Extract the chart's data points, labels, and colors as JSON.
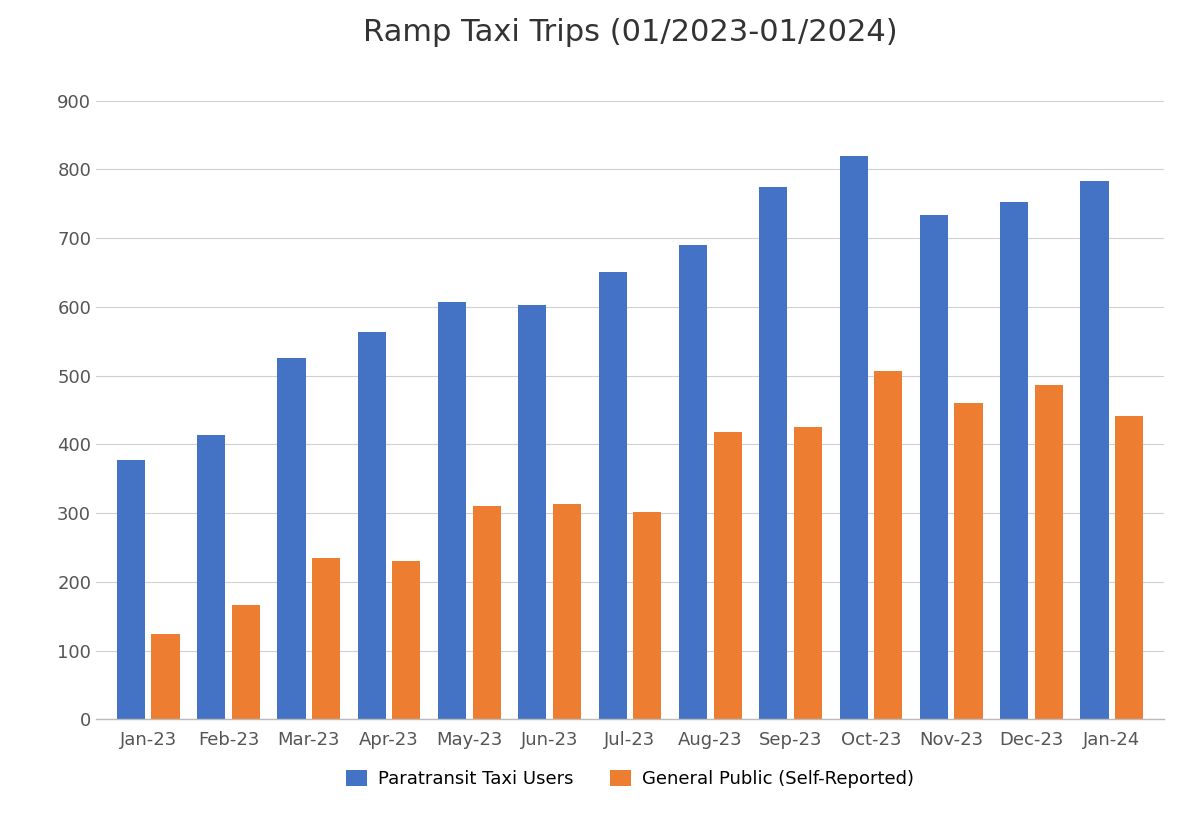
{
  "title": "Ramp Taxi Trips (01/2023-01/2024)",
  "categories": [
    "Jan-23",
    "Feb-23",
    "Mar-23",
    "Apr-23",
    "May-23",
    "Jun-23",
    "Jul-23",
    "Aug-23",
    "Sep-23",
    "Oct-23",
    "Nov-23",
    "Dec-23",
    "Jan-24"
  ],
  "paratransit": [
    378,
    413,
    526,
    563,
    607,
    602,
    651,
    690,
    774,
    820,
    734,
    752,
    783
  ],
  "general_public": [
    125,
    167,
    235,
    231,
    311,
    314,
    301,
    418,
    425,
    507,
    460,
    487,
    441
  ],
  "paratransit_color": "#4472C4",
  "general_public_color": "#ED7D31",
  "paratransit_label": "Paratransit Taxi Users",
  "general_public_label": "General Public (Self-Reported)",
  "ylim": [
    0,
    950
  ],
  "yticks": [
    0,
    100,
    200,
    300,
    400,
    500,
    600,
    700,
    800,
    900
  ],
  "title_fontsize": 22,
  "tick_fontsize": 13,
  "legend_fontsize": 13,
  "background_color": "#ffffff",
  "grid_color": "#d0d0d0",
  "bar_width": 0.35,
  "bar_gap": 0.08
}
